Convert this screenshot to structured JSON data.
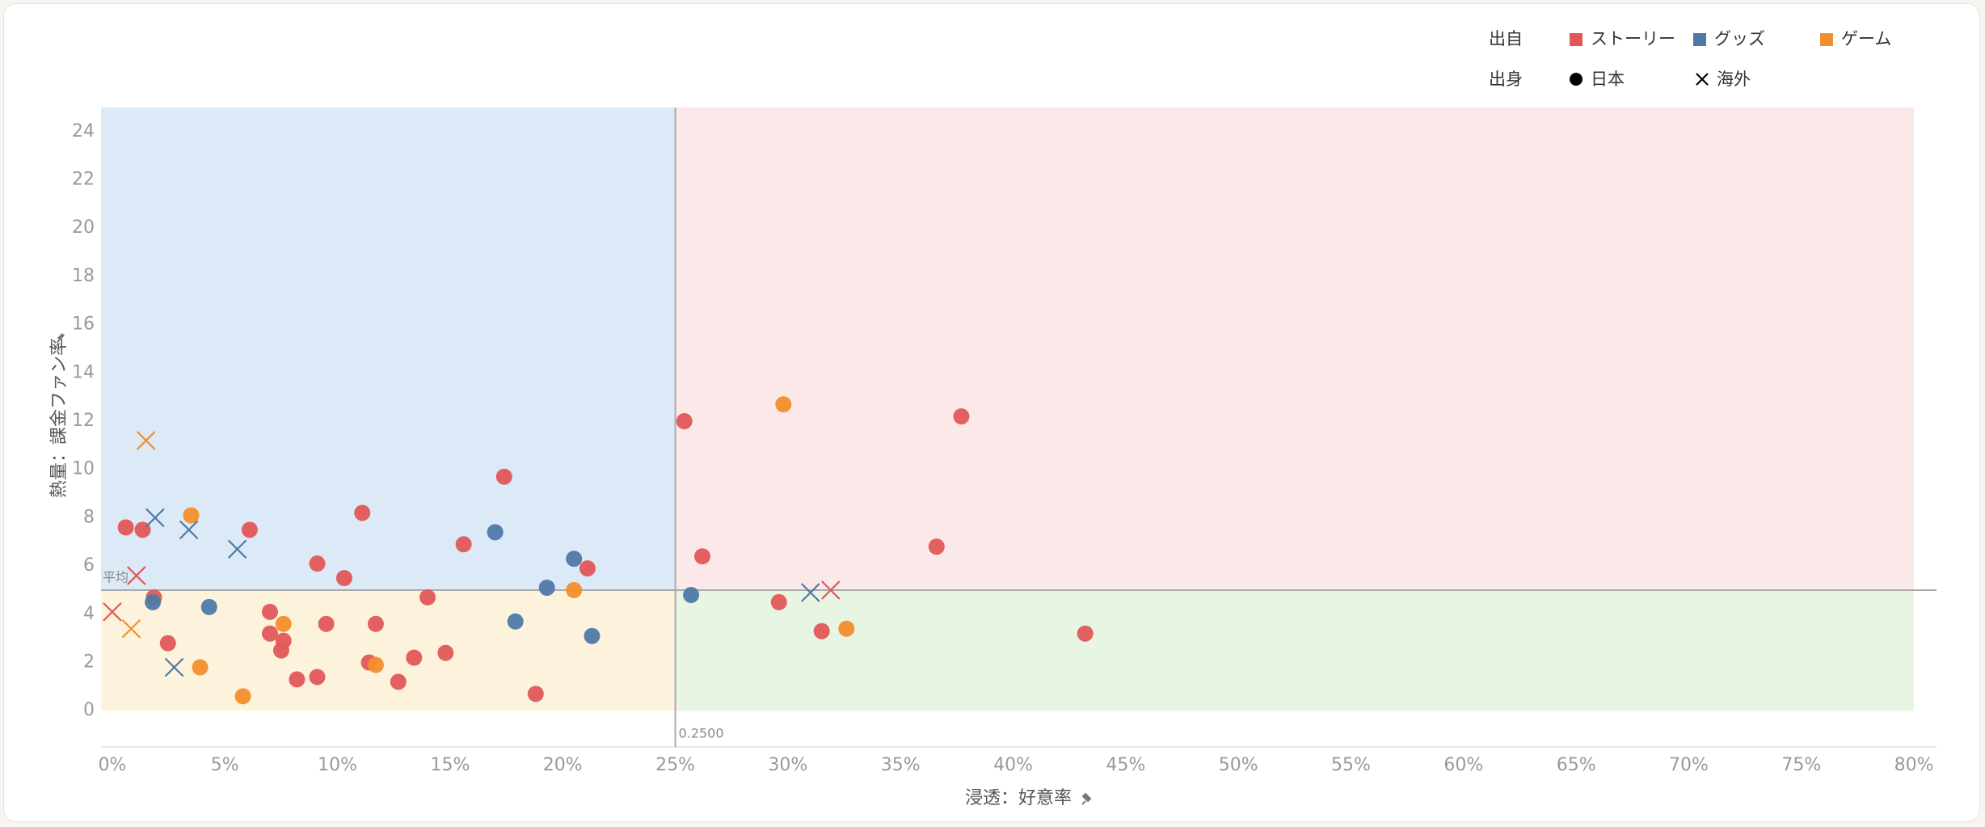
{
  "chart_data": {
    "type": "scatter",
    "x_label": "浸透：好意率",
    "y_label": "熱量：課金ファン率",
    "color_legend": {
      "title": "出自",
      "items": [
        {
          "name": "ストーリー",
          "color": "#e15759"
        },
        {
          "name": "グッズ",
          "color": "#4e79a7"
        },
        {
          "name": "ゲーム",
          "color": "#f28e2b"
        }
      ]
    },
    "shape_legend": {
      "title": "出身",
      "items": [
        {
          "name": "日本",
          "shape": "circle"
        },
        {
          "name": "海外",
          "shape": "cross"
        }
      ]
    },
    "xlim": [
      -0.005,
      0.81
    ],
    "ylim": [
      -1.5,
      25
    ],
    "xticks": [
      {
        "value": 0,
        "label": "0%"
      },
      {
        "value": 0.05,
        "label": "5%"
      },
      {
        "value": 0.1,
        "label": "10%"
      },
      {
        "value": 0.15,
        "label": "15%"
      },
      {
        "value": 0.2,
        "label": "20%"
      },
      {
        "value": 0.25,
        "label": "25%"
      },
      {
        "value": 0.3,
        "label": "30%"
      },
      {
        "value": 0.35,
        "label": "35%"
      },
      {
        "value": 0.4,
        "label": "40%"
      },
      {
        "value": 0.45,
        "label": "45%"
      },
      {
        "value": 0.5,
        "label": "50%"
      },
      {
        "value": 0.55,
        "label": "55%"
      },
      {
        "value": 0.6,
        "label": "60%"
      },
      {
        "value": 0.65,
        "label": "65%"
      },
      {
        "value": 0.7,
        "label": "70%"
      },
      {
        "value": 0.75,
        "label": "75%"
      },
      {
        "value": 0.8,
        "label": "80%"
      }
    ],
    "yticks": [
      0,
      2,
      4,
      6,
      8,
      10,
      12,
      14,
      16,
      18,
      20,
      22,
      24
    ],
    "reference_lines": [
      {
        "axis": "x",
        "value": 0.25,
        "label": "0.2500"
      },
      {
        "axis": "y",
        "value": 5,
        "label": "平均"
      }
    ],
    "quadrant_colors": [
      "#dce9f6",
      "#fbe8e8",
      "#fdf3dc",
      "#e8f5e3"
    ],
    "series": [
      {
        "origin": "ストーリー",
        "birth": "日本",
        "x": [
          0.006,
          0.0135,
          0.0185,
          0.0247,
          0.061,
          0.07,
          0.07,
          0.076,
          0.075,
          0.082,
          0.091,
          0.091,
          0.095,
          0.103,
          0.111,
          0.114,
          0.117,
          0.127,
          0.134,
          0.14,
          0.148,
          0.156,
          0.174,
          0.188,
          0.211,
          0.254,
          0.262,
          0.296,
          0.315,
          0.366,
          0.377,
          0.432
        ],
        "values": [
          7.6,
          7.5,
          4.7,
          2.8,
          7.5,
          4.1,
          3.2,
          2.9,
          2.5,
          1.3,
          1.4,
          6.1,
          3.6,
          5.5,
          8.2,
          2.0,
          3.6,
          1.2,
          2.2,
          4.7,
          2.4,
          6.9,
          9.7,
          0.7,
          5.9,
          12.0,
          6.4,
          4.5,
          3.3,
          6.8,
          12.2,
          3.2
        ]
      },
      {
        "origin": "ストーリー",
        "birth": "海外",
        "x": [
          0.0,
          0.0107,
          0.319
        ],
        "values": [
          4.1,
          5.6,
          5.0
        ]
      },
      {
        "origin": "グッズ",
        "birth": "日本",
        "x": [
          0.018,
          0.043,
          0.17,
          0.179,
          0.193,
          0.205,
          0.213,
          0.257
        ],
        "values": [
          4.5,
          4.3,
          7.4,
          3.7,
          5.1,
          6.3,
          3.1,
          4.8
        ]
      },
      {
        "origin": "グッズ",
        "birth": "海外",
        "x": [
          0.019,
          0.034,
          0.0555,
          0.0275,
          0.31
        ],
        "values": [
          8.0,
          7.5,
          6.7,
          1.8,
          4.9
        ]
      },
      {
        "origin": "ゲーム",
        "birth": "日本",
        "x": [
          0.035,
          0.039,
          0.058,
          0.076,
          0.117,
          0.205,
          0.298,
          0.326
        ],
        "values": [
          8.1,
          1.8,
          0.6,
          3.6,
          1.9,
          5.0,
          12.7,
          3.4
        ]
      },
      {
        "origin": "ゲーム",
        "birth": "海外",
        "x": [
          0.015,
          0.0084
        ],
        "values": [
          11.2,
          3.4
        ]
      }
    ]
  }
}
